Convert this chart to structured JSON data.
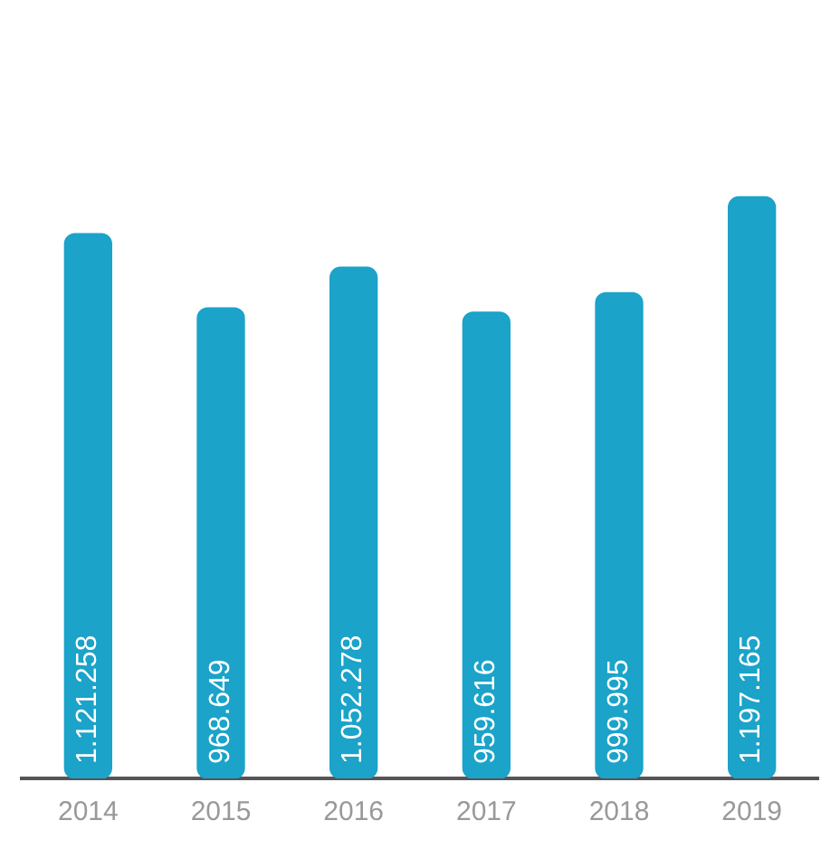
{
  "chart_data": {
    "type": "bar",
    "categories": [
      "2014",
      "2015",
      "2016",
      "2017",
      "2018",
      "2019"
    ],
    "values": [
      1121258,
      968649,
      1052278,
      959616,
      999995,
      1197165
    ],
    "value_labels": [
      "1.121.258",
      "968.649",
      "1.052.278",
      "959.616",
      "999.995",
      "1.197.165"
    ],
    "color": "#1ba3c9",
    "tick_labels": "x",
    "grid": false,
    "legend": false
  }
}
